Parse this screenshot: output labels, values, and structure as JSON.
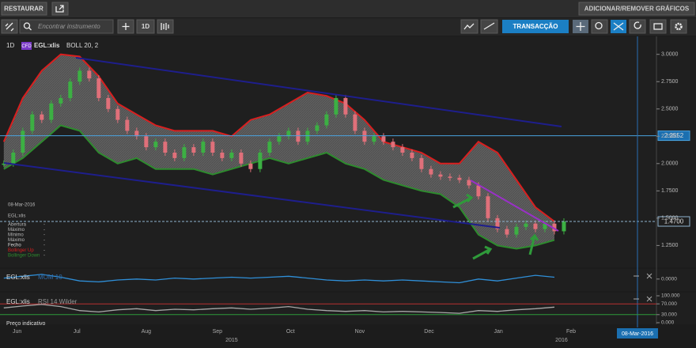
{
  "toolbar": {
    "restore": "RESTAURAR",
    "add_remove": "ADICIONAR/REMOVER GRÁFICOS",
    "search_placeholder": "Encontrar instrumento",
    "interval": "1D",
    "trade": "TRANSACÇÃO"
  },
  "header": {
    "interval": "1D",
    "badge": "CFD",
    "symbol": "EGL:xlis",
    "indicator": "BOLL 20, 2"
  },
  "info": {
    "date": "08-Mar-2016",
    "symbol": "EGL:xlis",
    "fields": [
      "Abertura",
      "Máximo",
      "Mínimo",
      "Máximo"
    ],
    "placeholder": "-"
  },
  "footer": "Preço indicativo",
  "chart_data": [
    {
      "type": "candlestick",
      "xlim": [
        -0.4,
        68.75
      ],
      "ylim": [
        1.05,
        3.15
      ],
      "yticks": [
        {
          "value": 1.25,
          "label": "1.2500"
        },
        {
          "value": 1.5,
          "label": "1.5000"
        },
        {
          "value": 1.75,
          "label": "1.7500"
        },
        {
          "value": 2,
          "label": "2.0000"
        },
        {
          "value": 2.25,
          "label": "2.2500"
        },
        {
          "value": 2.5,
          "label": "2.5000"
        },
        {
          "value": 2.75,
          "label": "2.7500"
        },
        {
          "value": 3,
          "label": "3.0000"
        }
      ],
      "xticks": [
        {
          "value": 1.4,
          "label": "Jun"
        },
        {
          "value": 7.7,
          "label": "Jul"
        },
        {
          "value": 15,
          "label": "Aug"
        },
        {
          "value": 22.5,
          "label": "Sep"
        },
        {
          "value": 30.2,
          "label": "Oct"
        },
        {
          "value": 37.5,
          "label": "Nov"
        },
        {
          "value": 44.8,
          "label": "Dec"
        },
        {
          "value": 52.1,
          "label": "Jan"
        },
        {
          "value": 59.75,
          "label": "Feb"
        }
      ],
      "year_ticks": [
        {
          "value": 24,
          "label": "2015"
        },
        {
          "value": 58.75,
          "label": "2016"
        }
      ],
      "price_lines": [
        {
          "value": 2.2552,
          "label": "2.2552",
          "color": "#4aa3df"
        },
        {
          "value": 1.47,
          "label": "1.4700",
          "color": "#8fb3cf"
        }
      ],
      "crosshair": {
        "value": 66.75,
        "label": "08-Mar-2016"
      },
      "series": [
        {
          "name": "Fecho",
          "up_color": "#3cb043",
          "down_color": "#e0707a",
          "values": [
            2.0,
            2.1,
            2.3,
            2.45,
            2.4,
            2.55,
            2.6,
            2.75,
            2.85,
            2.78,
            2.6,
            2.5,
            2.4,
            2.3,
            2.25,
            2.15,
            2.2,
            2.1,
            2.05,
            2.15,
            2.1,
            2.2,
            2.1,
            2.05,
            2.1,
            2.0,
            1.95,
            2.1,
            2.2,
            2.25,
            2.3,
            2.2,
            2.3,
            2.35,
            2.45,
            2.6,
            2.45,
            2.3,
            2.2,
            2.25,
            2.2,
            2.15,
            2.1,
            2.05,
            1.95,
            1.9,
            1.88,
            1.87,
            1.85,
            1.8,
            1.7,
            1.5,
            1.4,
            1.35,
            1.42,
            1.45,
            1.4,
            1.45,
            1.38,
            1.47
          ]
        },
        {
          "name": "Bollinger Up",
          "color": "#d91f1f",
          "x": [
            0,
            2,
            4,
            6,
            8,
            10,
            12,
            14,
            16,
            18,
            20,
            22,
            24,
            26,
            28,
            30,
            32,
            34,
            36,
            38,
            40,
            42,
            44,
            46,
            48,
            50,
            52,
            54,
            56,
            58
          ],
          "values": [
            2.2,
            2.6,
            2.85,
            3.0,
            2.98,
            2.8,
            2.55,
            2.45,
            2.35,
            2.3,
            2.3,
            2.3,
            2.25,
            2.4,
            2.45,
            2.55,
            2.65,
            2.62,
            2.55,
            2.4,
            2.2,
            2.15,
            2.1,
            2.0,
            2.0,
            2.2,
            2.1,
            1.85,
            1.6,
            1.47
          ]
        },
        {
          "name": "Bollinger Down",
          "color": "#2e8b2e",
          "x": [
            0,
            2,
            4,
            6,
            8,
            10,
            12,
            14,
            16,
            18,
            20,
            22,
            24,
            26,
            28,
            30,
            32,
            34,
            36,
            38,
            40,
            42,
            44,
            46,
            48,
            50,
            52,
            54,
            56,
            58
          ],
          "values": [
            1.95,
            2.05,
            2.2,
            2.35,
            2.3,
            2.1,
            2.0,
            2.05,
            1.95,
            1.95,
            1.95,
            1.9,
            1.95,
            2.0,
            2.05,
            2.0,
            2.05,
            2.1,
            2.0,
            1.95,
            1.85,
            1.8,
            1.75,
            1.72,
            1.6,
            1.35,
            1.25,
            1.22,
            1.25,
            1.3
          ]
        }
      ]
    },
    {
      "type": "line",
      "title": "EGL:xlis",
      "indicator": "MOM 10",
      "ylim": [
        -1.2,
        1.0
      ],
      "yticks": [
        {
          "value": 0,
          "label": "0.0000"
        }
      ],
      "series": [
        {
          "color": "#2f8fd8",
          "x": [
            0,
            2,
            4,
            6,
            8,
            10,
            12,
            14,
            16,
            18,
            20,
            22,
            24,
            26,
            28,
            30,
            32,
            34,
            36,
            38,
            40,
            42,
            44,
            46,
            48,
            50,
            52,
            54,
            56,
            58
          ],
          "values": [
            0.1,
            0.3,
            0.5,
            0.2,
            -0.2,
            -0.3,
            -0.1,
            0.0,
            -0.1,
            0.1,
            0.0,
            0.1,
            0.2,
            0.1,
            0.2,
            0.3,
            0.1,
            -0.1,
            -0.2,
            -0.1,
            -0.2,
            -0.1,
            -0.2,
            -0.3,
            -0.4,
            0.0,
            -0.2,
            0.1,
            0.4,
            0.2
          ]
        }
      ]
    },
    {
      "type": "line",
      "title": "EGL:xlis",
      "indicator": "RSI 14 Wilder",
      "ylim": [
        0,
        100
      ],
      "yticks": [
        {
          "value": 0,
          "label": "0.000"
        },
        {
          "value": 30,
          "label": "30.000"
        },
        {
          "value": 70,
          "label": "70.000"
        },
        {
          "value": 100,
          "label": "100.000"
        }
      ],
      "levels": [
        {
          "value": 70,
          "color": "#b83030"
        },
        {
          "value": 30,
          "color": "#2f9a3a"
        }
      ],
      "series": [
        {
          "color": "#a8a8a8",
          "x": [
            0,
            2,
            4,
            6,
            8,
            10,
            12,
            14,
            16,
            18,
            20,
            22,
            24,
            26,
            28,
            30,
            32,
            34,
            36,
            38,
            40,
            42,
            44,
            46,
            48,
            50,
            52,
            54,
            56,
            58
          ],
          "values": [
            55,
            62,
            68,
            60,
            45,
            40,
            48,
            52,
            45,
            50,
            48,
            52,
            55,
            50,
            54,
            60,
            50,
            45,
            42,
            45,
            40,
            42,
            40,
            38,
            35,
            45,
            42,
            48,
            52,
            58
          ]
        }
      ]
    }
  ]
}
